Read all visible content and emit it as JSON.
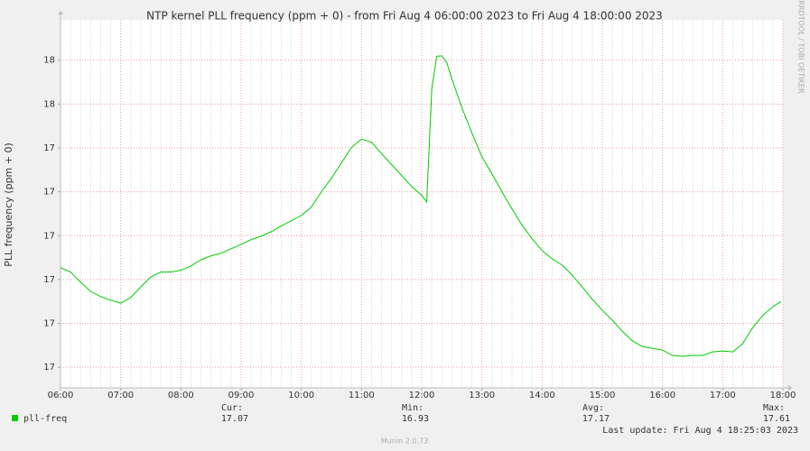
{
  "chart_data": {
    "type": "line",
    "title": "NTP kernel PLL frequency (ppm + 0) - from Fri Aug  4 06:00:00 2023 to Fri Aug  4 18:00:00 2023",
    "ylabel": "PLL frequency (ppm + 0)",
    "watermark": "RRDTOOL / TOBI OETIKER",
    "footer": "Munin 2.0.73",
    "last_update": "Last update:  Fri Aug  4 18:25:03 2023",
    "grid": true,
    "xlim": [
      6,
      18
    ],
    "ylim": [
      16.853,
      17.692
    ],
    "xticks": [
      {
        "value": 6,
        "label": "06:00"
      },
      {
        "value": 7,
        "label": "07:00"
      },
      {
        "value": 8,
        "label": "08:00"
      },
      {
        "value": 9,
        "label": "09:00"
      },
      {
        "value": 10,
        "label": "10:00"
      },
      {
        "value": 11,
        "label": "11:00"
      },
      {
        "value": 12,
        "label": "12:00"
      },
      {
        "value": 13,
        "label": "13:00"
      },
      {
        "value": 14,
        "label": "14:00"
      },
      {
        "value": 15,
        "label": "15:00"
      },
      {
        "value": 16,
        "label": "16:00"
      },
      {
        "value": 17,
        "label": "17:00"
      },
      {
        "value": 18,
        "label": "18:00"
      }
    ],
    "yticks": [
      {
        "value": 16.9,
        "label": "17"
      },
      17,
      {
        "value": 17.1,
        "label": "17"
      },
      {
        "value": 17.2,
        "label": "17"
      },
      {
        "value": 17.3,
        "label": "17"
      },
      {
        "value": 17.4,
        "label": "17"
      },
      {
        "value": 17.5,
        "label": "18"
      },
      {
        "value": 17.6,
        "label": "18"
      }
    ],
    "x": [
      6,
      6.1667,
      6.3333,
      6.5,
      6.6667,
      6.8333,
      7,
      7.1667,
      7.3333,
      7.5,
      7.6667,
      7.8333,
      8,
      8.1667,
      8.3333,
      8.5,
      8.6667,
      8.8333,
      9,
      9.1667,
      9.3333,
      9.5,
      9.6667,
      9.8333,
      10,
      10.1667,
      10.3333,
      10.5,
      10.6667,
      10.8333,
      11,
      11.1667,
      11.3333,
      11.5,
      11.6667,
      11.8333,
      12,
      12.0833,
      12.1667,
      12.25,
      12.3333,
      12.4167,
      12.5,
      12.5833,
      12.6667,
      12.8333,
      13,
      13.1667,
      13.3333,
      13.5,
      13.6667,
      13.8333,
      14,
      14.1667,
      14.3333,
      14.5,
      14.6667,
      14.8333,
      15,
      15.1667,
      15.3333,
      15.5,
      15.6667,
      15.8333,
      16,
      16.1667,
      16.3333,
      16.5,
      16.6667,
      16.8333,
      17,
      17.1667,
      17.3333,
      17.5,
      17.6667,
      17.8333,
      17.9667
    ],
    "series": [
      {
        "name": "pll-freq",
        "color": "#00cc00",
        "values": [
          17.127,
          17.117,
          17.094,
          17.073,
          17.061,
          17.053,
          17.046,
          17.059,
          17.083,
          17.106,
          17.117,
          17.117,
          17.121,
          17.131,
          17.145,
          17.154,
          17.16,
          17.17,
          17.18,
          17.191,
          17.199,
          17.209,
          17.222,
          17.234,
          17.246,
          17.265,
          17.3,
          17.331,
          17.366,
          17.401,
          17.42,
          17.413,
          17.387,
          17.362,
          17.337,
          17.312,
          17.292,
          17.277,
          17.533,
          17.609,
          17.61,
          17.595,
          17.558,
          17.525,
          17.492,
          17.434,
          17.38,
          17.341,
          17.3,
          17.261,
          17.224,
          17.193,
          17.166,
          17.147,
          17.133,
          17.11,
          17.083,
          17.055,
          17.03,
          17.007,
          16.982,
          16.96,
          16.947,
          16.943,
          16.939,
          16.927,
          16.925,
          16.927,
          16.927,
          16.935,
          16.937,
          16.935,
          16.954,
          16.991,
          17.018,
          17.038,
          17.05
        ]
      }
    ],
    "stats": [
      {
        "label": "Cur:",
        "value": 17.07
      },
      {
        "label": "Min:",
        "value": 16.93
      },
      {
        "label": "Avg:",
        "value": 17.17
      },
      {
        "label": "Max:",
        "value": 17.61
      }
    ]
  }
}
